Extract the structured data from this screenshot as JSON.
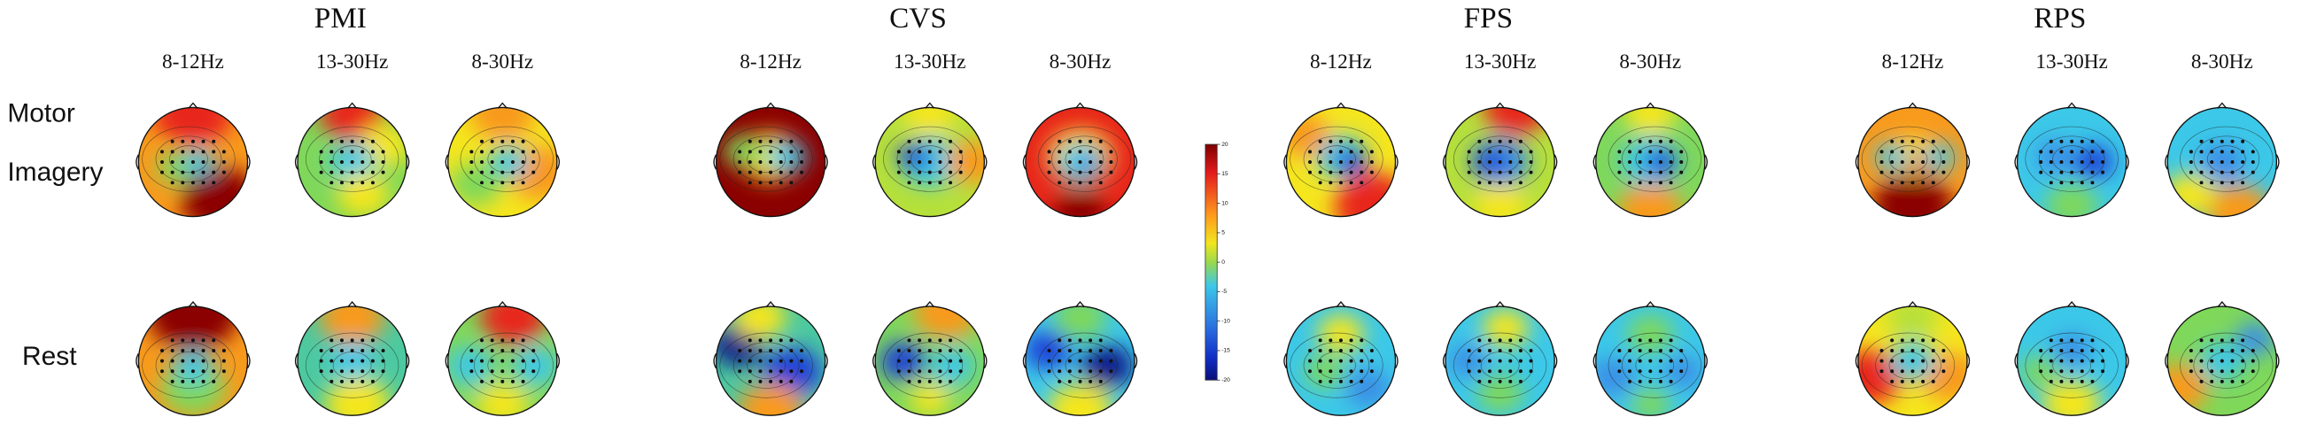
{
  "groups": [
    {
      "title": "PMI",
      "bands": [
        "8-12Hz",
        "13-30Hz",
        "8-30Hz"
      ]
    },
    {
      "title": "CVS",
      "bands": [
        "8-12Hz",
        "13-30Hz",
        "8-30Hz"
      ]
    },
    {
      "title": "FPS",
      "bands": [
        "8-12Hz",
        "13-30Hz",
        "8-30Hz"
      ]
    },
    {
      "title": "RPS",
      "bands": [
        "8-12Hz",
        "13-30Hz",
        "8-30Hz"
      ]
    }
  ],
  "rows": [
    [
      "Motor",
      "Imagery"
    ],
    [
      "Rest"
    ]
  ],
  "colorbar": {
    "lim": [
      -20,
      20
    ],
    "ticks": [
      20,
      15,
      10,
      5,
      0,
      -5,
      -10,
      -15,
      -20
    ]
  }
}
